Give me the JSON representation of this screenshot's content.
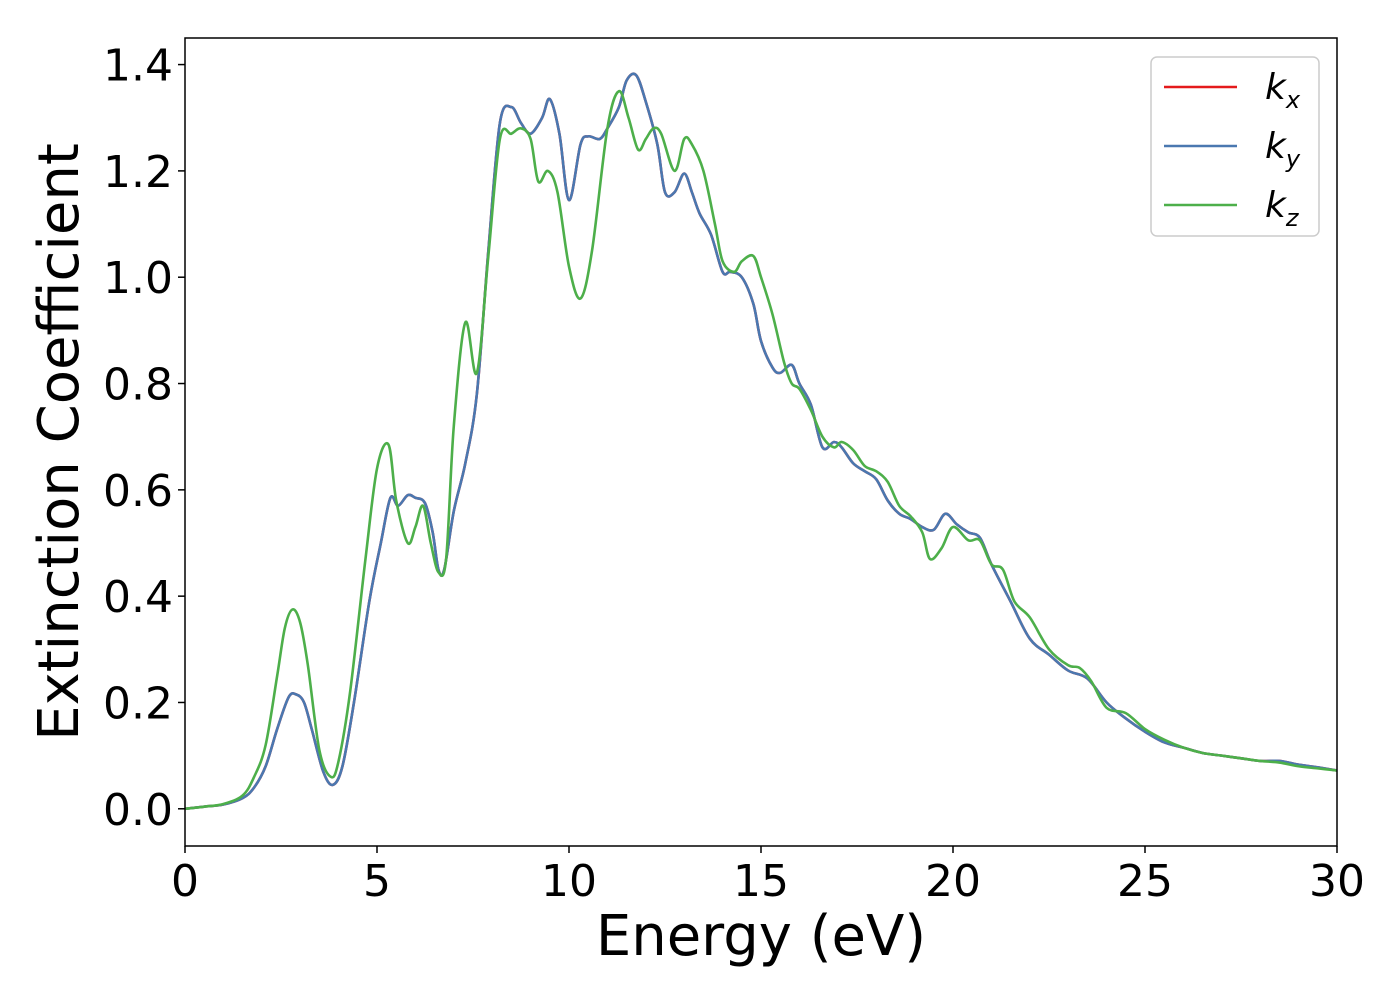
{
  "chart_data": {
    "type": "line",
    "title": "",
    "xlabel": "Energy (eV)",
    "ylabel": "Extinction Coefficient",
    "xlim": [
      0,
      30
    ],
    "ylim": [
      -0.07,
      1.45
    ],
    "xticks": [
      0,
      5,
      10,
      15,
      20,
      25,
      30
    ],
    "xtick_labels": [
      "0",
      "5",
      "10",
      "15",
      "20",
      "25",
      "30"
    ],
    "yticks": [
      0.0,
      0.2,
      0.4,
      0.6,
      0.8,
      1.0,
      1.2,
      1.4
    ],
    "ytick_labels": [
      "0.0",
      "0.2",
      "0.4",
      "0.6",
      "0.8",
      "1.0",
      "1.2",
      "1.4"
    ],
    "grid": false,
    "legend_position": "top-right",
    "series": [
      {
        "name": "k_x",
        "legend_base": "k",
        "legend_sub": "x",
        "color": "#e41a1c",
        "x": [
          0,
          0.5,
          1,
          1.5,
          1.8,
          2.1,
          2.4,
          2.7,
          2.9,
          3.1,
          3.3,
          3.6,
          3.85,
          4.1,
          4.4,
          4.8,
          5.1,
          5.35,
          5.55,
          5.8,
          6.0,
          6.25,
          6.45,
          6.6,
          6.75,
          7.0,
          7.3,
          7.6,
          7.9,
          8.2,
          8.5,
          8.75,
          9.0,
          9.3,
          9.5,
          9.75,
          10.0,
          10.3,
          10.5,
          10.8,
          11.0,
          11.3,
          11.5,
          11.75,
          12.0,
          12.3,
          12.5,
          12.75,
          13.0,
          13.2,
          13.4,
          13.7,
          14.0,
          14.2,
          14.5,
          14.8,
          15.0,
          15.3,
          15.5,
          15.8,
          16.0,
          16.3,
          16.6,
          16.9,
          17.1,
          17.4,
          17.7,
          18.0,
          18.3,
          18.6,
          18.9,
          19.2,
          19.5,
          19.8,
          20.1,
          20.4,
          20.7,
          21.0,
          21.5,
          22.0,
          22.5,
          23.0,
          23.5,
          24.0,
          24.5,
          25.0,
          25.5,
          26.0,
          26.5,
          27.0,
          27.5,
          28.0,
          28.5,
          29.0,
          29.5,
          30.0
        ],
        "y": [
          0.0,
          0.004,
          0.008,
          0.02,
          0.04,
          0.08,
          0.15,
          0.21,
          0.215,
          0.2,
          0.15,
          0.07,
          0.045,
          0.08,
          0.2,
          0.39,
          0.5,
          0.585,
          0.57,
          0.59,
          0.585,
          0.575,
          0.52,
          0.45,
          0.45,
          0.56,
          0.65,
          0.78,
          1.05,
          1.29,
          1.32,
          1.29,
          1.27,
          1.3,
          1.335,
          1.27,
          1.145,
          1.25,
          1.265,
          1.26,
          1.28,
          1.32,
          1.37,
          1.38,
          1.33,
          1.25,
          1.16,
          1.16,
          1.195,
          1.16,
          1.12,
          1.08,
          1.01,
          1.01,
          1.0,
          0.95,
          0.88,
          0.83,
          0.82,
          0.835,
          0.8,
          0.76,
          0.68,
          0.69,
          0.68,
          0.65,
          0.635,
          0.62,
          0.58,
          0.555,
          0.545,
          0.53,
          0.525,
          0.555,
          0.535,
          0.52,
          0.51,
          0.46,
          0.39,
          0.32,
          0.29,
          0.26,
          0.245,
          0.2,
          0.17,
          0.145,
          0.125,
          0.115,
          0.105,
          0.1,
          0.095,
          0.09,
          0.09,
          0.083,
          0.078,
          0.072
        ]
      },
      {
        "name": "k_y",
        "legend_base": "k",
        "legend_sub": "y",
        "color": "#4a78b0",
        "x": [
          0,
          0.5,
          1,
          1.5,
          1.8,
          2.1,
          2.4,
          2.7,
          2.9,
          3.1,
          3.3,
          3.6,
          3.85,
          4.1,
          4.4,
          4.8,
          5.1,
          5.35,
          5.55,
          5.8,
          6.0,
          6.25,
          6.45,
          6.6,
          6.75,
          7.0,
          7.3,
          7.6,
          7.9,
          8.2,
          8.5,
          8.75,
          9.0,
          9.3,
          9.5,
          9.75,
          10.0,
          10.3,
          10.5,
          10.8,
          11.0,
          11.3,
          11.5,
          11.75,
          12.0,
          12.3,
          12.5,
          12.75,
          13.0,
          13.2,
          13.4,
          13.7,
          14.0,
          14.2,
          14.5,
          14.8,
          15.0,
          15.3,
          15.5,
          15.8,
          16.0,
          16.3,
          16.6,
          16.9,
          17.1,
          17.4,
          17.7,
          18.0,
          18.3,
          18.6,
          18.9,
          19.2,
          19.5,
          19.8,
          20.1,
          20.4,
          20.7,
          21.0,
          21.5,
          22.0,
          22.5,
          23.0,
          23.5,
          24.0,
          24.5,
          25.0,
          25.5,
          26.0,
          26.5,
          27.0,
          27.5,
          28.0,
          28.5,
          29.0,
          29.5,
          30.0
        ],
        "y": [
          0.0,
          0.004,
          0.008,
          0.02,
          0.04,
          0.08,
          0.15,
          0.21,
          0.215,
          0.2,
          0.15,
          0.07,
          0.045,
          0.08,
          0.2,
          0.39,
          0.5,
          0.585,
          0.57,
          0.59,
          0.585,
          0.575,
          0.52,
          0.45,
          0.45,
          0.56,
          0.65,
          0.78,
          1.05,
          1.29,
          1.32,
          1.29,
          1.27,
          1.3,
          1.335,
          1.27,
          1.145,
          1.25,
          1.265,
          1.26,
          1.28,
          1.32,
          1.37,
          1.38,
          1.33,
          1.25,
          1.16,
          1.16,
          1.195,
          1.16,
          1.12,
          1.08,
          1.01,
          1.01,
          1.0,
          0.95,
          0.88,
          0.83,
          0.82,
          0.835,
          0.8,
          0.76,
          0.68,
          0.69,
          0.68,
          0.65,
          0.635,
          0.62,
          0.58,
          0.555,
          0.545,
          0.53,
          0.525,
          0.555,
          0.535,
          0.52,
          0.51,
          0.46,
          0.39,
          0.32,
          0.29,
          0.26,
          0.245,
          0.2,
          0.17,
          0.145,
          0.125,
          0.115,
          0.105,
          0.1,
          0.095,
          0.09,
          0.09,
          0.083,
          0.078,
          0.072
        ]
      },
      {
        "name": "k_z",
        "legend_base": "k",
        "legend_sub": "z",
        "color": "#4daf4a",
        "x": [
          0,
          0.5,
          1,
          1.5,
          1.8,
          2.1,
          2.4,
          2.6,
          2.8,
          3.0,
          3.2,
          3.5,
          3.8,
          4.0,
          4.3,
          4.7,
          5.0,
          5.3,
          5.5,
          5.8,
          6.0,
          6.2,
          6.4,
          6.6,
          6.8,
          7.0,
          7.3,
          7.6,
          7.9,
          8.2,
          8.5,
          8.75,
          9.0,
          9.2,
          9.45,
          9.7,
          10.0,
          10.3,
          10.6,
          11.0,
          11.3,
          11.55,
          11.8,
          12.0,
          12.2,
          12.4,
          12.75,
          13.0,
          13.2,
          13.5,
          13.8,
          14.0,
          14.3,
          14.5,
          14.8,
          15.0,
          15.3,
          15.6,
          15.8,
          16.0,
          16.3,
          16.6,
          16.9,
          17.1,
          17.4,
          17.7,
          18.0,
          18.3,
          18.6,
          18.9,
          19.2,
          19.4,
          19.7,
          20.0,
          20.4,
          20.7,
          21.0,
          21.3,
          21.6,
          22.0,
          22.5,
          23.0,
          23.3,
          23.6,
          24.0,
          24.5,
          25.0,
          25.5,
          26.0,
          26.5,
          27.0,
          27.5,
          28.0,
          28.5,
          29.0,
          29.5,
          30.0
        ],
        "y": [
          0.0,
          0.004,
          0.009,
          0.025,
          0.06,
          0.12,
          0.25,
          0.34,
          0.375,
          0.35,
          0.27,
          0.11,
          0.06,
          0.09,
          0.22,
          0.47,
          0.64,
          0.685,
          0.58,
          0.5,
          0.53,
          0.57,
          0.5,
          0.445,
          0.47,
          0.72,
          0.915,
          0.82,
          1.04,
          1.26,
          1.27,
          1.28,
          1.26,
          1.18,
          1.2,
          1.16,
          1.02,
          0.96,
          1.05,
          1.28,
          1.35,
          1.3,
          1.24,
          1.26,
          1.28,
          1.27,
          1.2,
          1.26,
          1.25,
          1.2,
          1.1,
          1.03,
          1.01,
          1.03,
          1.04,
          1.0,
          0.93,
          0.84,
          0.8,
          0.79,
          0.75,
          0.7,
          0.68,
          0.69,
          0.675,
          0.645,
          0.635,
          0.615,
          0.57,
          0.55,
          0.52,
          0.47,
          0.49,
          0.53,
          0.505,
          0.505,
          0.46,
          0.45,
          0.39,
          0.36,
          0.3,
          0.27,
          0.265,
          0.24,
          0.19,
          0.18,
          0.15,
          0.13,
          0.115,
          0.105,
          0.1,
          0.095,
          0.09,
          0.087,
          0.08,
          0.076,
          0.072
        ]
      }
    ]
  }
}
